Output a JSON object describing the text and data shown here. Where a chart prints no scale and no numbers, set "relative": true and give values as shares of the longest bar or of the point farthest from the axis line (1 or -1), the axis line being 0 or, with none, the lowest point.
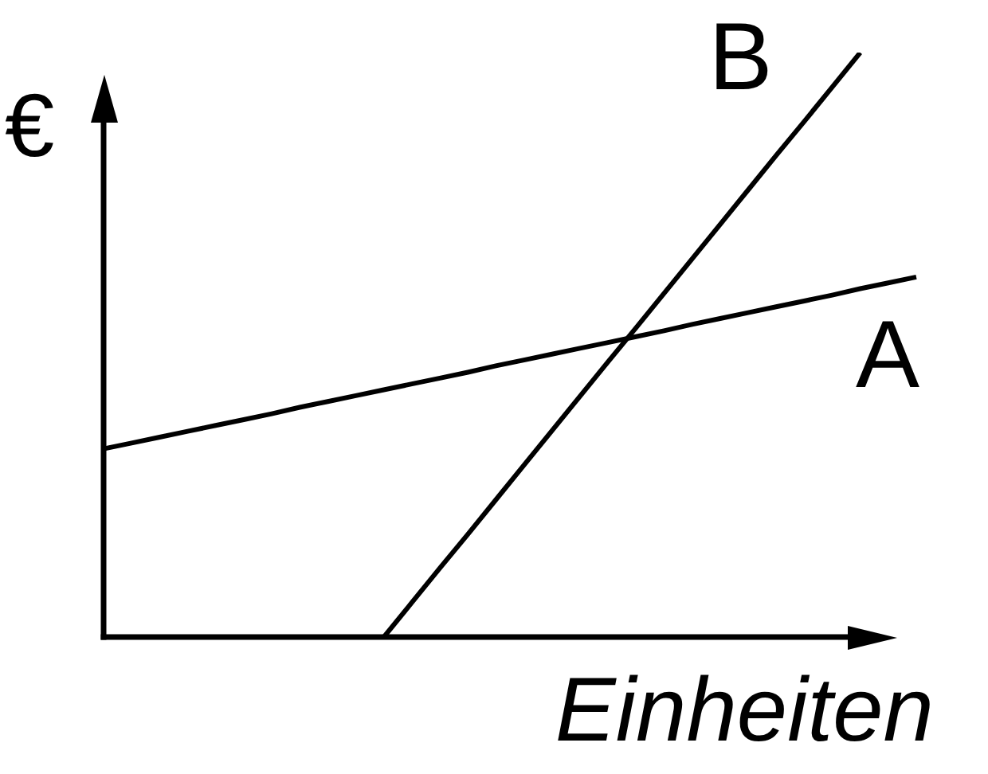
{
  "chart_data": {
    "type": "line",
    "xlabel": "Einheiten",
    "ylabel": "€",
    "relative": true,
    "categories": [
      null,
      null,
      null,
      null,
      null,
      null,
      null,
      null,
      null,
      null,
      null,
      null,
      null,
      null,
      null,
      null,
      null,
      null,
      null,
      null,
      null,
      null,
      null,
      null,
      null,
      null,
      null,
      null,
      null,
      null
    ],
    "series": [
      {
        "name": "A",
        "color": "#000000",
        "values": [
          0.322,
          0.332,
          0.342,
          0.352,
          0.362,
          0.372,
          0.382,
          0.393,
          0.403,
          0.413,
          0.423,
          0.433,
          0.443,
          0.453,
          0.464,
          0.474,
          0.484,
          0.494,
          0.504,
          0.514,
          0.524,
          0.535,
          0.545,
          0.555,
          0.565,
          0.575,
          0.585,
          0.596,
          0.606,
          0.616
        ]
      },
      {
        "name": "B",
        "color": "#000000",
        "values": [
          null,
          null,
          null,
          null,
          null,
          null,
          null,
          null,
          null,
          null,
          0,
          0.059,
          0.118,
          0.176,
          0.235,
          0.294,
          0.353,
          0.412,
          0.471,
          0.529,
          0.588,
          0.647,
          0.706,
          0.765,
          0.824,
          0.882,
          0.941,
          1,
          null,
          null
        ]
      }
    ],
    "legend": false,
    "marker": "none",
    "line_style": "solid"
  }
}
